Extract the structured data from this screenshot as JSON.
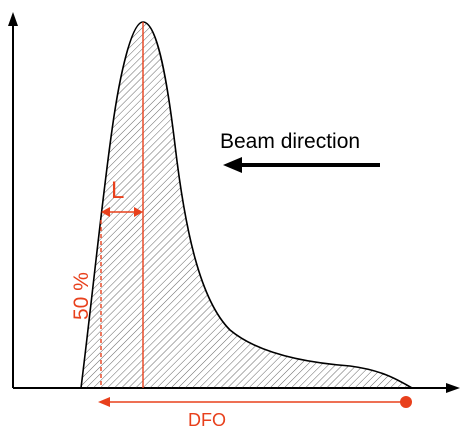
{
  "labels": {
    "beam_direction": "Beam direction",
    "length": "L",
    "percent": "50 %",
    "dfo": "DFO"
  },
  "colors": {
    "accent": "#e8401c",
    "ink": "#000000",
    "hatch": "#555555"
  }
}
